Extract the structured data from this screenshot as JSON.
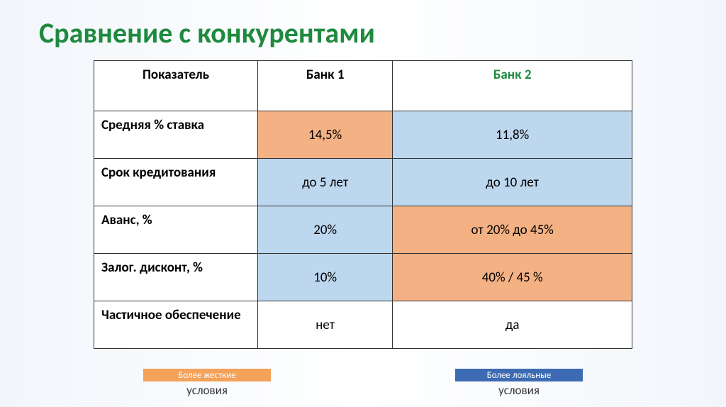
{
  "title": "Сравнение с конкурентами",
  "header": {
    "metric": "Показатель",
    "bank1": "Банк 1",
    "bank2": "Банк 2"
  },
  "rows": [
    {
      "metric": "Средняя % ставка",
      "b1": "14,5%",
      "b1_color": "orange",
      "b2": "11,8%",
      "b2_color": "blue"
    },
    {
      "metric": "Срок кредитования",
      "b1": "до 5 лет",
      "b1_color": "blue",
      "b2": "до 10 лет",
      "b2_color": "blue"
    },
    {
      "metric": "Аванс, %",
      "b1": "20%",
      "b1_color": "blue",
      "b2": "от 20% до 45%",
      "b2_color": "orange"
    },
    {
      "metric": "Залог. дисконт, %",
      "b1": "10%",
      "b1_color": "blue",
      "b2": "40%  /  45 %",
      "b2_color": "orange"
    },
    {
      "metric": "Частичное обеспечение",
      "b1": "нет",
      "b1_color": "white",
      "b2": "да",
      "b2_color": "white"
    }
  ],
  "legend": {
    "strict_stripe": "Более жесткие",
    "strict_sub": "условия",
    "loyal_stripe": "Более лояльные",
    "loyal_sub": "условия"
  }
}
